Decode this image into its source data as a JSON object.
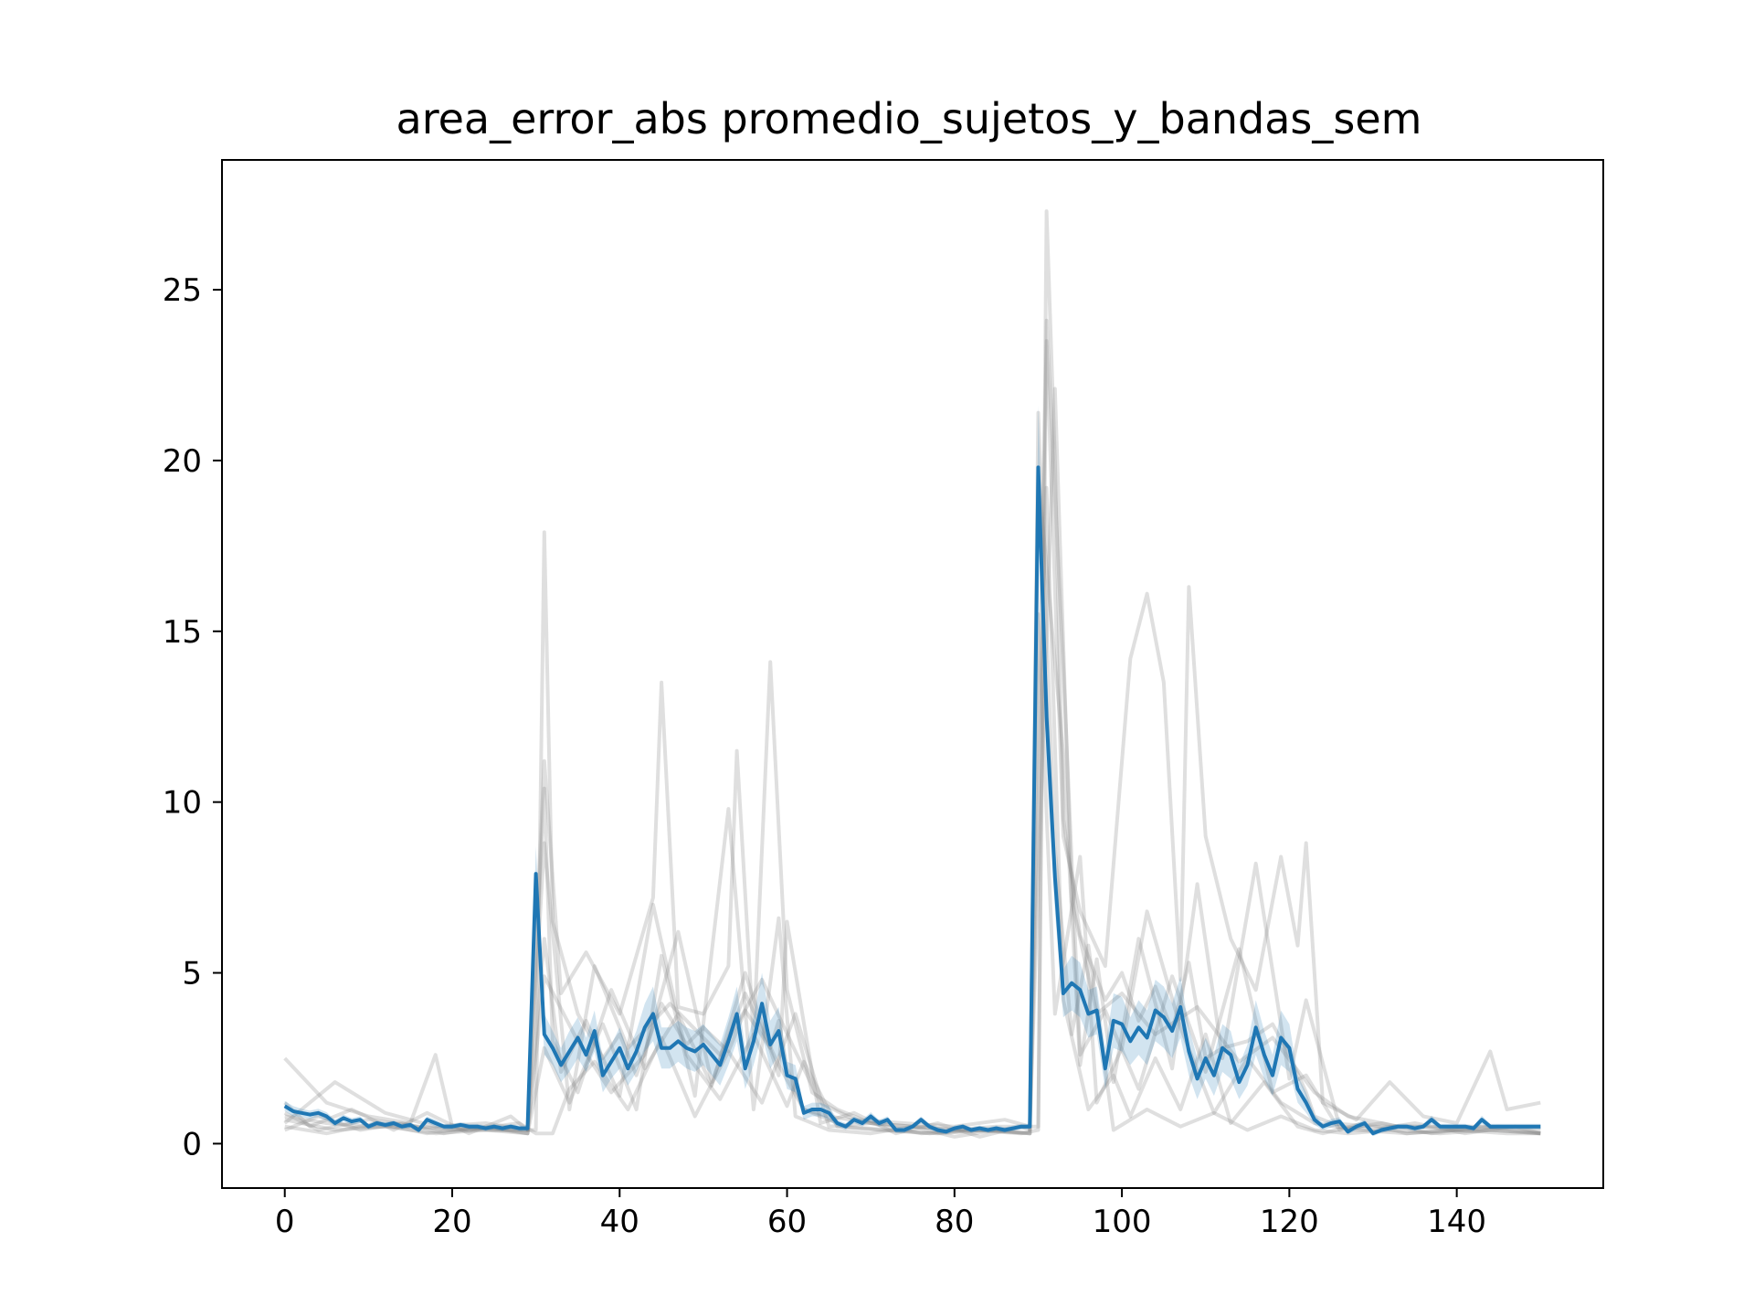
{
  "chart_data": {
    "type": "line",
    "title": "area_error_abs promedio_sujetos_y_bandas_sem",
    "xlabel": "",
    "ylabel": "",
    "xlim": [
      -7.5,
      157.5
    ],
    "ylim": [
      -1.3,
      28.8
    ],
    "x_ticks": [
      0,
      20,
      40,
      60,
      80,
      100,
      120,
      140
    ],
    "y_ticks": [
      0,
      5,
      10,
      15,
      20,
      25
    ],
    "grid": false,
    "legend": "none",
    "colors": {
      "mean_line": "#1f77b4",
      "sem_band": "#1f77b4",
      "subject_lines": "#808080"
    },
    "x": [
      0,
      1,
      2,
      3,
      4,
      5,
      6,
      7,
      8,
      9,
      10,
      11,
      12,
      13,
      14,
      15,
      16,
      17,
      18,
      19,
      20,
      21,
      22,
      23,
      24,
      25,
      26,
      27,
      28,
      29,
      30,
      31,
      32,
      33,
      34,
      35,
      36,
      37,
      38,
      39,
      40,
      41,
      42,
      43,
      44,
      45,
      46,
      47,
      48,
      49,
      50,
      51,
      52,
      53,
      54,
      55,
      56,
      57,
      58,
      59,
      60,
      61,
      62,
      63,
      64,
      65,
      66,
      67,
      68,
      69,
      70,
      71,
      72,
      73,
      74,
      75,
      76,
      77,
      78,
      79,
      80,
      81,
      82,
      83,
      84,
      85,
      86,
      87,
      88,
      89,
      90,
      91,
      92,
      93,
      94,
      95,
      96,
      97,
      98,
      99,
      100,
      101,
      102,
      103,
      104,
      105,
      106,
      107,
      108,
      109,
      110,
      111,
      112,
      113,
      114,
      115,
      116,
      117,
      118,
      119,
      120,
      121,
      122,
      123,
      124,
      125,
      126,
      127,
      128,
      129,
      130,
      131,
      132,
      133,
      134,
      135,
      136,
      137,
      138,
      139,
      140,
      141,
      142,
      143,
      144,
      145,
      146,
      147,
      148,
      149,
      150
    ],
    "series": [
      {
        "role": "mean",
        "values": [
          1.1,
          0.95,
          0.9,
          0.85,
          0.9,
          0.8,
          0.6,
          0.75,
          0.65,
          0.7,
          0.5,
          0.6,
          0.55,
          0.6,
          0.5,
          0.55,
          0.4,
          0.7,
          0.6,
          0.5,
          0.5,
          0.55,
          0.5,
          0.5,
          0.45,
          0.5,
          0.45,
          0.5,
          0.45,
          0.45,
          7.9,
          3.2,
          2.8,
          2.3,
          2.7,
          3.1,
          2.6,
          3.3,
          2.0,
          2.4,
          2.8,
          2.2,
          2.7,
          3.4,
          3.8,
          2.8,
          2.8,
          3.0,
          2.8,
          2.7,
          2.9,
          2.6,
          2.3,
          3.0,
          3.8,
          2.2,
          3.0,
          4.1,
          2.9,
          3.3,
          2.0,
          1.9,
          0.9,
          1.0,
          1.0,
          0.9,
          0.6,
          0.5,
          0.7,
          0.6,
          0.8,
          0.6,
          0.7,
          0.4,
          0.4,
          0.5,
          0.7,
          0.5,
          0.4,
          0.35,
          0.45,
          0.5,
          0.4,
          0.45,
          0.4,
          0.45,
          0.4,
          0.45,
          0.5,
          0.5,
          19.8,
          12.5,
          7.8,
          4.4,
          4.7,
          4.5,
          3.8,
          3.9,
          2.2,
          3.6,
          3.5,
          3.0,
          3.4,
          3.1,
          3.9,
          3.7,
          3.3,
          4.0,
          2.7,
          1.9,
          2.5,
          2.0,
          2.8,
          2.6,
          1.8,
          2.3,
          3.4,
          2.6,
          2.0,
          3.1,
          2.8,
          1.6,
          1.2,
          0.7,
          0.5,
          0.6,
          0.65,
          0.35,
          0.5,
          0.6,
          0.3,
          0.4,
          0.45,
          0.5,
          0.5,
          0.45,
          0.5,
          0.7,
          0.5,
          0.5,
          0.5,
          0.5,
          0.45,
          0.7,
          0.5,
          0.5,
          0.5,
          0.5,
          0.5,
          0.5,
          0.5
        ]
      },
      {
        "role": "sem",
        "values": [
          0.15,
          0.15,
          0.12,
          0.12,
          0.12,
          0.12,
          0.1,
          0.1,
          0.1,
          0.1,
          0.08,
          0.08,
          0.08,
          0.08,
          0.08,
          0.08,
          0.08,
          0.1,
          0.1,
          0.08,
          0.08,
          0.08,
          0.08,
          0.08,
          0.08,
          0.08,
          0.08,
          0.08,
          0.08,
          0.08,
          0.8,
          0.6,
          0.5,
          0.5,
          0.6,
          0.6,
          0.5,
          0.6,
          0.5,
          0.5,
          0.6,
          0.5,
          0.6,
          0.7,
          0.8,
          0.6,
          0.6,
          0.6,
          0.6,
          0.6,
          0.6,
          0.6,
          0.6,
          0.7,
          0.8,
          0.6,
          0.7,
          0.9,
          0.7,
          0.7,
          0.4,
          0.4,
          0.2,
          0.2,
          0.2,
          0.2,
          0.1,
          0.1,
          0.1,
          0.1,
          0.12,
          0.1,
          0.1,
          0.08,
          0.08,
          0.08,
          0.1,
          0.08,
          0.08,
          0.08,
          0.08,
          0.08,
          0.08,
          0.08,
          0.08,
          0.08,
          0.08,
          0.08,
          0.08,
          0.08,
          1.8,
          1.5,
          1.0,
          0.7,
          0.8,
          0.8,
          0.7,
          0.7,
          0.6,
          0.8,
          0.8,
          0.7,
          0.8,
          0.8,
          0.9,
          0.9,
          0.8,
          0.9,
          0.7,
          0.6,
          0.6,
          0.6,
          0.7,
          0.7,
          0.5,
          0.6,
          0.8,
          0.7,
          0.6,
          0.8,
          0.7,
          0.4,
          0.3,
          0.15,
          0.1,
          0.12,
          0.12,
          0.08,
          0.1,
          0.1,
          0.08,
          0.08,
          0.08,
          0.08,
          0.08,
          0.08,
          0.08,
          0.12,
          0.08,
          0.08,
          0.08,
          0.08,
          0.08,
          0.12,
          0.08,
          0.08,
          0.08,
          0.08,
          0.08,
          0.08,
          0.08
        ]
      }
    ],
    "subject_series": [
      {
        "x": [
          0,
          5,
          10,
          15,
          20,
          25,
          29,
          30,
          31,
          32,
          35,
          38,
          40,
          42,
          45,
          48,
          50,
          53,
          55,
          58,
          59,
          60,
          62,
          65,
          70,
          75,
          80,
          85,
          89,
          90,
          91,
          92,
          93,
          95,
          98,
          100,
          102,
          104,
          106,
          108,
          110,
          112,
          115,
          118,
          120,
          122,
          123,
          125,
          130,
          135,
          140,
          145,
          150
        ],
        "values": [
          0.8,
          0.6,
          0.5,
          0.5,
          0.4,
          0.4,
          0.4,
          0.4,
          17.9,
          6.5,
          3.8,
          2.5,
          3.2,
          2.0,
          4.1,
          2.9,
          3.4,
          2.7,
          3.9,
          2.8,
          3.6,
          2.2,
          1.0,
          0.8,
          0.6,
          0.5,
          0.4,
          0.4,
          0.5,
          0.5,
          27.3,
          20.0,
          9.5,
          6.1,
          4.2,
          5.0,
          3.6,
          4.6,
          3.3,
          5.3,
          2.5,
          2.8,
          3.0,
          3.5,
          2.6,
          1.5,
          0.8,
          0.6,
          0.5,
          0.5,
          0.4,
          0.5,
          0.4
        ]
      },
      {
        "x": [
          0,
          5,
          10,
          15,
          18,
          20,
          25,
          29,
          31,
          33,
          36,
          40,
          44,
          45,
          47,
          50,
          53,
          54,
          56,
          58,
          60,
          63,
          66,
          70,
          75,
          80,
          85,
          89,
          91,
          93,
          95,
          98,
          101,
          103,
          105,
          107,
          108,
          110,
          113,
          116,
          119,
          121,
          122,
          124,
          128,
          132,
          136,
          140,
          144,
          146,
          150
        ],
        "values": [
          2.5,
          1.2,
          0.8,
          0.6,
          2.6,
          0.5,
          0.4,
          0.4,
          11.2,
          4.4,
          5.6,
          3.8,
          7.2,
          13.5,
          4.0,
          3.8,
          5.2,
          11.5,
          3.1,
          14.1,
          4.5,
          1.5,
          1.0,
          0.6,
          0.5,
          0.4,
          0.5,
          0.5,
          23.5,
          9.0,
          6.8,
          5.2,
          14.2,
          16.1,
          13.5,
          4.8,
          16.3,
          9.0,
          6.0,
          4.5,
          8.4,
          5.8,
          8.8,
          1.2,
          0.7,
          1.8,
          0.8,
          0.6,
          2.7,
          1.0,
          1.2
        ]
      },
      {
        "x": [
          0,
          6,
          12,
          18,
          24,
          29,
          31,
          34,
          37,
          41,
          46,
          52,
          57,
          61,
          64,
          68,
          74,
          80,
          86,
          89,
          92,
          94,
          97,
          100,
          104,
          109,
          114,
          118,
          123,
          127,
          133,
          139,
          145,
          150
        ],
        "values": [
          0.6,
          1.8,
          0.9,
          0.5,
          0.6,
          0.4,
          8.8,
          1.0,
          5.2,
          2.8,
          4.1,
          2.6,
          4.8,
          2.7,
          1.2,
          0.7,
          0.6,
          0.5,
          0.7,
          0.5,
          22.1,
          7.1,
          3.8,
          4.4,
          3.2,
          4.0,
          2.4,
          3.1,
          1.5,
          0.8,
          0.5,
          0.5,
          0.5,
          0.5
        ]
      },
      {
        "x": [
          0,
          4,
          9,
          14,
          19,
          24,
          29,
          31,
          34,
          38,
          42,
          45,
          49,
          53,
          56,
          59,
          61,
          65,
          70,
          75,
          80,
          85,
          89,
          91,
          93,
          96,
          99,
          101,
          104,
          107,
          110,
          113,
          117,
          121,
          124,
          129,
          134,
          139,
          144,
          150
        ],
        "values": [
          0.4,
          0.8,
          0.4,
          0.6,
          0.3,
          0.5,
          0.3,
          2.8,
          1.2,
          3.5,
          1.0,
          5.5,
          1.4,
          9.8,
          1.0,
          6.6,
          0.8,
          0.4,
          0.3,
          0.5,
          0.2,
          0.4,
          0.3,
          19.2,
          4.2,
          1.0,
          2.0,
          0.8,
          2.5,
          1.0,
          3.2,
          0.6,
          1.8,
          0.5,
          0.3,
          0.6,
          0.3,
          0.4,
          0.4,
          0.3
        ]
      },
      {
        "x": [
          0,
          3,
          8,
          13,
          17,
          22,
          27,
          29,
          31,
          32,
          35,
          39,
          43,
          47,
          51,
          55,
          59,
          60,
          64,
          68,
          73,
          78,
          83,
          88,
          89,
          90,
          93,
          95,
          97,
          99,
          102,
          106,
          109,
          112,
          116,
          120,
          122,
          126,
          130,
          135,
          141,
          147,
          150
        ],
        "values": [
          1.2,
          0.5,
          1.0,
          0.4,
          0.9,
          0.3,
          0.8,
          0.4,
          10.4,
          3.0,
          1.5,
          4.5,
          2.2,
          3.8,
          1.7,
          5.0,
          2.0,
          6.5,
          0.6,
          0.9,
          0.3,
          0.6,
          0.2,
          0.5,
          0.4,
          19.6,
          11.4,
          2.3,
          5.4,
          1.8,
          6.0,
          2.2,
          7.6,
          2.5,
          8.2,
          1.9,
          4.2,
          0.5,
          0.4,
          0.6,
          0.3,
          0.5,
          0.3
        ]
      },
      {
        "x": [
          0,
          5,
          11,
          17,
          23,
          29,
          31,
          33,
          36,
          40,
          44,
          48,
          52,
          56,
          60,
          62,
          66,
          71,
          77,
          83,
          89,
          90,
          92,
          94,
          96,
          99,
          103,
          107,
          111,
          115,
          119,
          123,
          127,
          132,
          138,
          144,
          150
        ],
        "values": [
          0.5,
          0.3,
          0.6,
          0.3,
          0.5,
          0.3,
          6.0,
          2.1,
          3.6,
          1.4,
          7.0,
          2.6,
          1.3,
          3.2,
          1.1,
          2.4,
          0.5,
          0.4,
          0.3,
          0.4,
          0.3,
          21.4,
          8.6,
          3.2,
          5.8,
          0.4,
          1.0,
          0.5,
          0.9,
          0.4,
          0.8,
          0.4,
          0.3,
          0.4,
          0.3,
          0.4,
          0.3
        ]
      },
      {
        "x": [
          0,
          4,
          10,
          16,
          22,
          28,
          30,
          32,
          34,
          37,
          41,
          45,
          49,
          53,
          57,
          61,
          65,
          70,
          76,
          82,
          88,
          90,
          91,
          93,
          95,
          98,
          102,
          106,
          110,
          114,
          118,
          122,
          126,
          131,
          137,
          143,
          150
        ],
        "values": [
          0.9,
          0.4,
          0.7,
          0.5,
          0.4,
          0.6,
          0.3,
          0.3,
          1.6,
          2.4,
          1.0,
          3.1,
          0.8,
          2.7,
          1.2,
          3.8,
          0.5,
          0.6,
          0.3,
          0.4,
          0.3,
          0.4,
          24.1,
          14.0,
          2.6,
          3.9,
          1.6,
          4.9,
          2.1,
          5.7,
          1.5,
          2.0,
          0.4,
          0.6,
          0.3,
          0.5,
          0.3
        ]
      },
      {
        "x": [
          0,
          6,
          12,
          18,
          24,
          29,
          31,
          35,
          39,
          43,
          47,
          51,
          55,
          59,
          62,
          67,
          72,
          78,
          84,
          89,
          90,
          92,
          95,
          97,
          100,
          103,
          107,
          111,
          115,
          119,
          123,
          128,
          134,
          140,
          146,
          150
        ],
        "values": [
          0.7,
          0.4,
          0.5,
          0.3,
          0.4,
          0.3,
          4.9,
          3.0,
          1.5,
          2.6,
          6.2,
          1.8,
          4.4,
          2.3,
          1.0,
          0.5,
          0.4,
          0.3,
          0.4,
          0.3,
          15.5,
          3.8,
          8.4,
          1.2,
          2.8,
          6.8,
          3.4,
          0.9,
          2.5,
          1.2,
          0.6,
          0.4,
          0.3,
          0.4,
          0.3,
          0.3
        ]
      }
    ]
  }
}
